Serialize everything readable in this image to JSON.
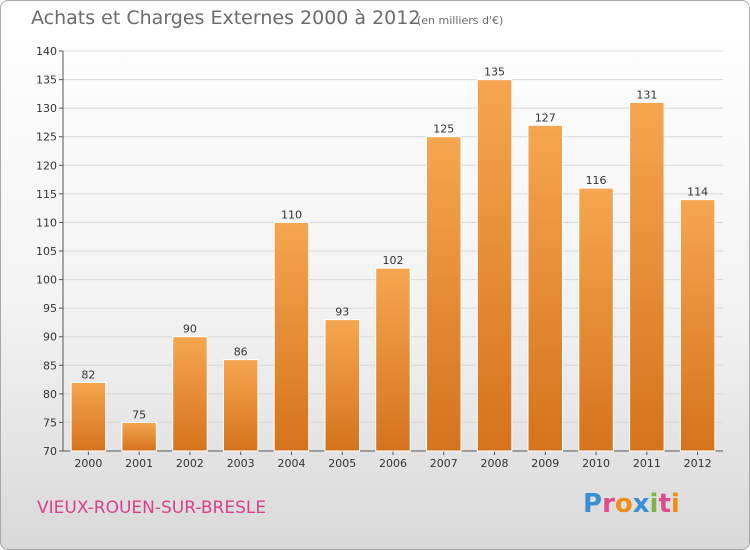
{
  "header": {
    "title": "Achats et Charges Externes 2000 à 2012",
    "subtitle": "(en milliers d'€)"
  },
  "footer": {
    "commune": "VIEUX-ROUEN-SUR-BRESLE",
    "logo_text": "Proxiti",
    "logo_letter_colors": [
      "#3a8fd1",
      "#e04a8f",
      "#f08c1a",
      "#3a8fd1",
      "#7cb342",
      "#e04a8f",
      "#f08c1a"
    ]
  },
  "colors": {
    "bar_top": "#f6a650",
    "bar_bottom": "#d5731c",
    "grid": "#d8d8d8",
    "axis": "#555555"
  },
  "chart_data": {
    "type": "bar",
    "title": "Achats et Charges Externes 2000 à 2012",
    "subtitle": "(en milliers d'€)",
    "xlabel": "",
    "ylabel": "",
    "categories": [
      "2000",
      "2001",
      "2002",
      "2003",
      "2004",
      "2005",
      "2006",
      "2007",
      "2008",
      "2009",
      "2010",
      "2011",
      "2012"
    ],
    "values": [
      82,
      75,
      90,
      86,
      110,
      93,
      102,
      125,
      135,
      127,
      116,
      131,
      114
    ],
    "ylim": [
      70,
      140
    ],
    "yticks": [
      70,
      75,
      80,
      85,
      90,
      95,
      100,
      105,
      110,
      115,
      120,
      125,
      130,
      135,
      140
    ],
    "grid": true,
    "legend": "none"
  }
}
